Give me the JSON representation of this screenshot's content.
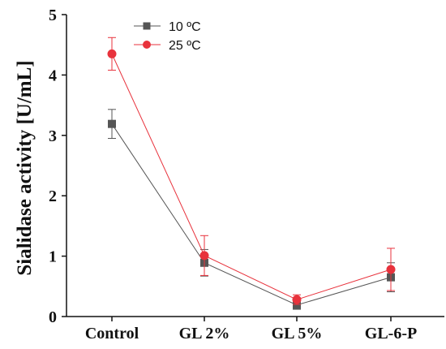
{
  "chart_data": {
    "type": "line",
    "categories": [
      "Control",
      "GL 2%",
      "GL 5%",
      "GL-6-P"
    ],
    "ylabel": "Sialidase activity [U/mL]",
    "xlabel": "",
    "ylim": [
      0,
      5
    ],
    "yticks": [
      "0",
      "1",
      "2",
      "3",
      "4",
      "5"
    ],
    "grid": false,
    "legend_position": "top-left",
    "series": [
      {
        "name": "10 ºC",
        "color": "#555555",
        "marker": "square",
        "values": [
          3.19,
          0.89,
          0.19,
          0.65
        ],
        "errors": [
          0.24,
          0.22,
          0.07,
          0.24
        ]
      },
      {
        "name": "25 ºC",
        "color": "#e8323c",
        "marker": "circle",
        "values": [
          4.35,
          1.01,
          0.28,
          0.78
        ],
        "errors": [
          0.27,
          0.33,
          0.08,
          0.35
        ]
      }
    ]
  }
}
